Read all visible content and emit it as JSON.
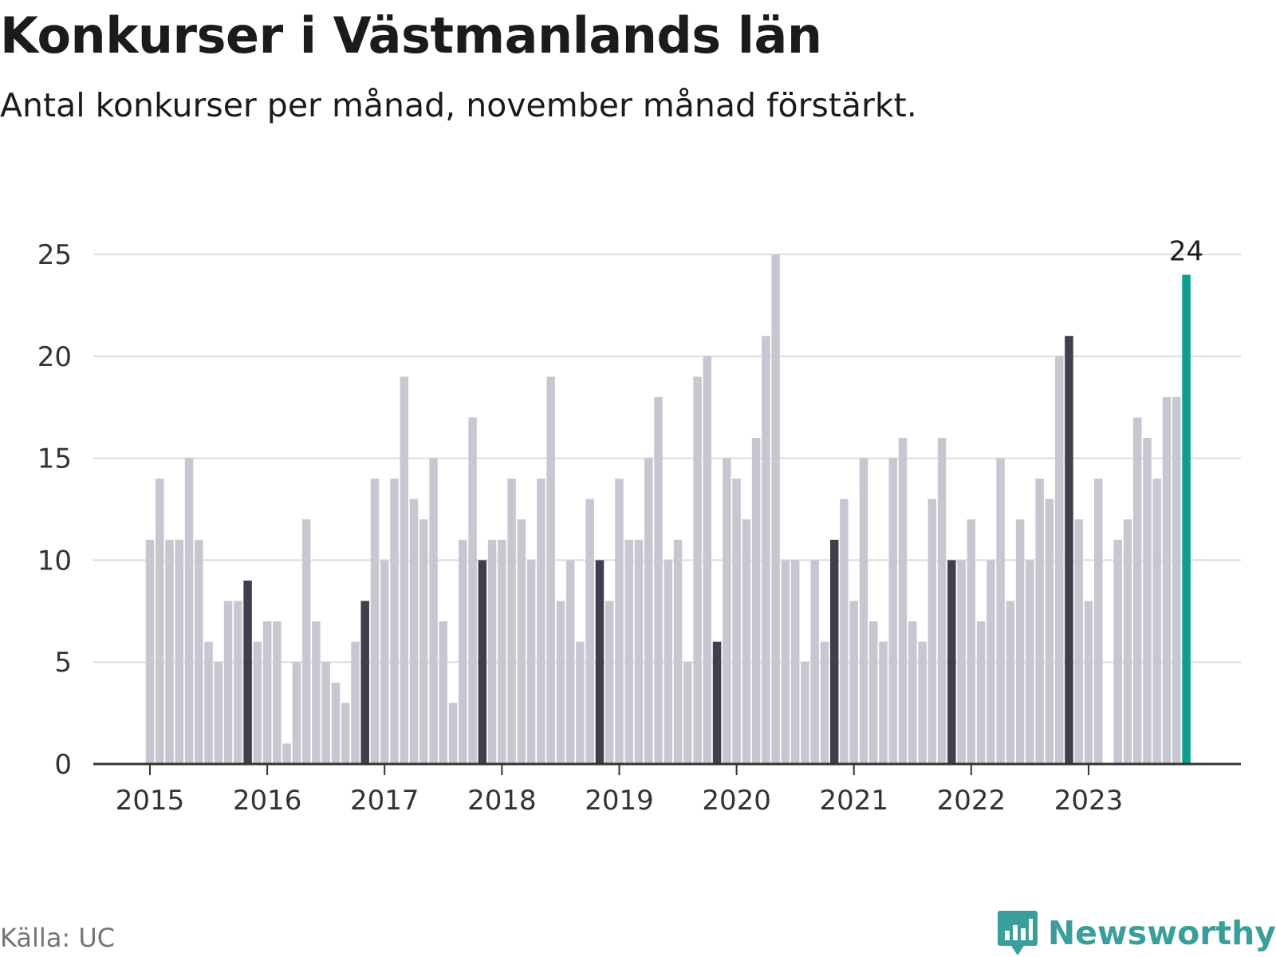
{
  "title": "Konkurser i Västmanlands län",
  "subtitle": "Antal konkurser per månad, november månad förstärkt.",
  "source": "Källa: UC",
  "brand": "Newsworthy",
  "colors": {
    "bar": "#c8c7d1",
    "november": "#3f3f4d",
    "latest": "#0d9e93",
    "grid": "#dddddd",
    "axis": "#333333"
  },
  "chart_data": {
    "type": "bar",
    "ylim": [
      0,
      25
    ],
    "yticks": [
      0,
      5,
      10,
      15,
      20,
      25
    ],
    "xticks": [
      "2015",
      "2016",
      "2017",
      "2018",
      "2019",
      "2020",
      "2021",
      "2022",
      "2023"
    ],
    "start": "2015-01",
    "grid": "horizontal",
    "highlight": "november",
    "latest_label": "24",
    "values": [
      11,
      14,
      11,
      11,
      15,
      11,
      6,
      5,
      8,
      8,
      9,
      6,
      7,
      7,
      1,
      5,
      12,
      7,
      5,
      4,
      3,
      6,
      8,
      14,
      10,
      14,
      19,
      13,
      12,
      15,
      7,
      3,
      11,
      17,
      10,
      11,
      11,
      14,
      12,
      10,
      14,
      19,
      8,
      10,
      6,
      13,
      10,
      8,
      14,
      11,
      11,
      15,
      18,
      10,
      11,
      5,
      19,
      20,
      6,
      15,
      14,
      12,
      16,
      21,
      25,
      10,
      10,
      5,
      10,
      6,
      11,
      13,
      8,
      15,
      7,
      6,
      15,
      16,
      7,
      6,
      13,
      16,
      10,
      10,
      12,
      7,
      10,
      15,
      8,
      12,
      10,
      14,
      13,
      20,
      21,
      12,
      8,
      14,
      0,
      11,
      12,
      17,
      16,
      14,
      18,
      18,
      24
    ]
  }
}
